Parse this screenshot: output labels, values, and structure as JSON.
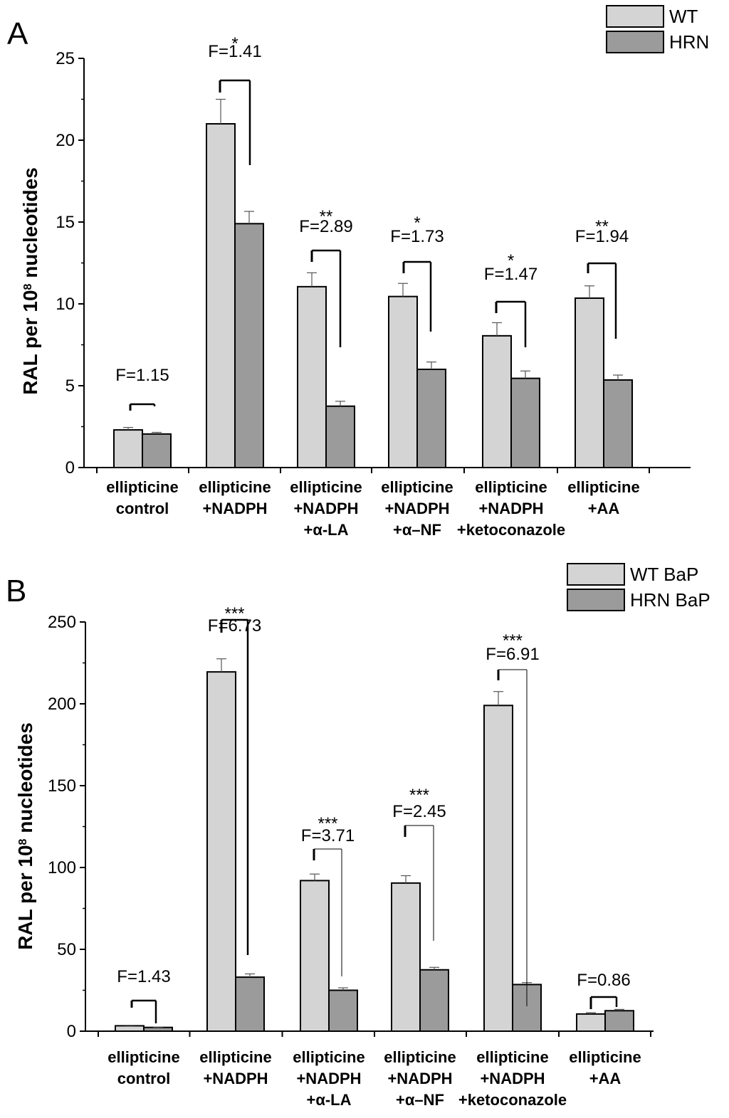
{
  "chart_data": [
    {
      "panel": "A",
      "type": "bar",
      "ylabel_main": "RAL per 10",
      "ylabel_sup": "8",
      "ylabel_tail": " nucleotides",
      "ylim": [
        0,
        25
      ],
      "yticks": [
        0,
        5,
        10,
        15,
        20,
        25
      ],
      "categories": [
        [
          "ellipticine",
          "control"
        ],
        [
          "ellipticine",
          "+NADPH"
        ],
        [
          "ellipticine",
          "+NADPH",
          "+α-LA"
        ],
        [
          "ellipticine",
          "+NADPH",
          "+α–NF"
        ],
        [
          "ellipticine",
          "+NADPH",
          "+ketoconazole"
        ],
        [
          "ellipticine",
          "+AA"
        ]
      ],
      "series": [
        {
          "name": "WT",
          "color": "#d4d4d4",
          "values": [
            2.3,
            21.0,
            11.05,
            10.45,
            8.05,
            10.35
          ],
          "errors": [
            0.15,
            1.5,
            0.85,
            0.8,
            0.8,
            0.75
          ]
        },
        {
          "name": "HRN",
          "color": "#9b9b9b",
          "values": [
            2.05,
            14.9,
            3.75,
            6.0,
            5.45,
            5.35
          ],
          "errors": [
            0.1,
            0.75,
            0.3,
            0.45,
            0.45,
            0.3
          ]
        }
      ],
      "annotations": [
        {
          "sig": "",
          "f": "F=1.15"
        },
        {
          "sig": "*",
          "f": "F=1.41"
        },
        {
          "sig": "**",
          "f": "F=2.89"
        },
        {
          "sig": "*",
          "f": "F=1.73"
        },
        {
          "sig": "*",
          "f": "F=1.47"
        },
        {
          "sig": "**",
          "f": "F=1.94"
        }
      ],
      "legend_position": "top-right"
    },
    {
      "panel": "B",
      "type": "bar",
      "ylabel_main": "RAL per 10",
      "ylabel_sup": "8",
      "ylabel_tail": " nucleotides",
      "ylim": [
        0,
        250
      ],
      "yticks": [
        0,
        50,
        100,
        150,
        200,
        250
      ],
      "categories": [
        [
          "ellipticine",
          "control"
        ],
        [
          "ellipticine",
          "+NADPH"
        ],
        [
          "ellipticine",
          "+NADPH",
          "+α-LA"
        ],
        [
          "ellipticine",
          "+NADPH",
          "+α–NF"
        ],
        [
          "ellipticine",
          "+NADPH",
          "+ketoconazole"
        ],
        [
          "ellipticine",
          "+AA"
        ]
      ],
      "series": [
        {
          "name": "WT BaP",
          "color": "#d4d4d4",
          "values": [
            3.3,
            219.5,
            92.0,
            90.5,
            199.0,
            10.5
          ],
          "errors": [
            0.3,
            8.0,
            4.0,
            4.5,
            8.5,
            0.8
          ]
        },
        {
          "name": "HRN BaP",
          "color": "#9b9b9b",
          "values": [
            2.3,
            33.0,
            25.0,
            37.5,
            28.5,
            12.5
          ],
          "errors": [
            0.2,
            2.0,
            1.5,
            1.5,
            1.2,
            0.8
          ]
        }
      ],
      "annotations": [
        {
          "sig": "",
          "f": "F=1.43"
        },
        {
          "sig": "***",
          "f": "F=6.73"
        },
        {
          "sig": "***",
          "f": "F=3.71"
        },
        {
          "sig": "***",
          "f": "F=2.45"
        },
        {
          "sig": "***",
          "f": "F=6.91"
        },
        {
          "sig": "",
          "f": "F=0.86"
        }
      ],
      "legend_position": "top-right"
    }
  ]
}
